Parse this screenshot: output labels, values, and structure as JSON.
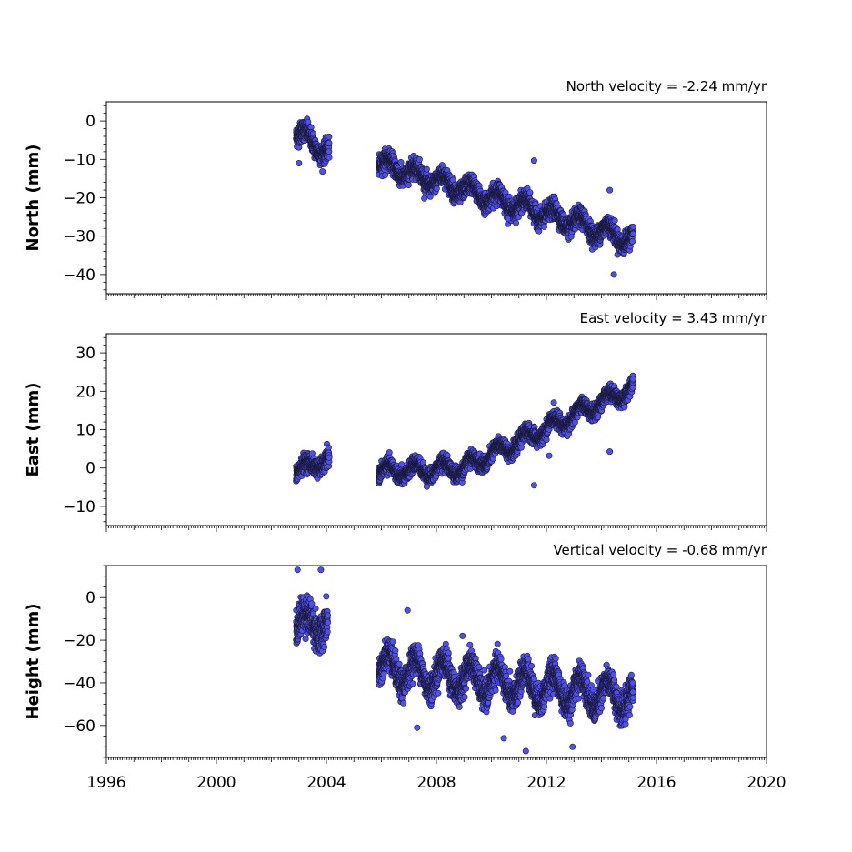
{
  "chart_data": [
    {
      "type": "scatter",
      "title": "North velocity = -2.24 mm/yr",
      "ylabel": "North (mm)",
      "xlim": [
        1996,
        2020
      ],
      "ylim": [
        -45,
        5
      ],
      "yticks": [
        0,
        -10,
        -20,
        -30,
        -40
      ],
      "ytick_labels": [
        "0",
        "−10",
        "−20",
        "−30",
        "−40"
      ],
      "show_x_labels": false,
      "segments": [
        {
          "x0": 2002.9,
          "x1": 2004.1,
          "y0": -3,
          "y1": -8,
          "amp": 2.0,
          "noise": 2.2
        },
        {
          "x0": 2005.9,
          "x1": 2015.15,
          "y0": -11,
          "y1": -31,
          "amp": 2.0,
          "noise": 2.0
        }
      ],
      "outliers": [
        {
          "x": 2003.0,
          "y": -11
        },
        {
          "x": 2011.55,
          "y": -10.3
        },
        {
          "x": 2014.3,
          "y": -18
        },
        {
          "x": 2010.6,
          "y": -25.5
        },
        {
          "x": 2014.45,
          "y": -40
        }
      ]
    },
    {
      "type": "scatter",
      "title": "East velocity = 3.43 mm/yr",
      "ylabel": "East (mm)",
      "xlim": [
        1996,
        2020
      ],
      "ylim": [
        -15,
        35
      ],
      "yticks": [
        30,
        20,
        10,
        0,
        -10
      ],
      "ytick_labels": [
        "30",
        "20",
        "10",
        "0",
        "−10"
      ],
      "show_x_labels": false,
      "segments": [
        {
          "x0": 2002.9,
          "x1": 2004.1,
          "y0": -1,
          "y1": 2.5,
          "amp": 1.5,
          "noise": 1.8
        },
        {
          "x0": 2005.9,
          "x1": 2009.0,
          "y0": -1,
          "y1": 0,
          "amp": 1.8,
          "noise": 1.6
        },
        {
          "x0": 2009.0,
          "x1": 2015.15,
          "y0": 0,
          "y1": 21,
          "amp": 1.8,
          "noise": 1.6
        }
      ],
      "outliers": [
        {
          "x": 2011.55,
          "y": -4.5
        },
        {
          "x": 2014.3,
          "y": 4.3
        },
        {
          "x": 2012.1,
          "y": 3.2
        }
      ]
    },
    {
      "type": "scatter",
      "title": "Vertical velocity = -0.68 mm/yr",
      "ylabel": "Height (mm)",
      "xlim": [
        1996,
        2020
      ],
      "ylim": [
        -75,
        15
      ],
      "yticks": [
        0,
        -20,
        -40,
        -60
      ],
      "ytick_labels": [
        "0",
        "−20",
        "−40",
        "−60"
      ],
      "show_x_labels": true,
      "xticks": [
        1996,
        2000,
        2004,
        2008,
        2012,
        2016,
        2020
      ],
      "xtick_labels": [
        "1996",
        "2000",
        "2004",
        "2008",
        "2012",
        "2016",
        "2020"
      ],
      "segments": [
        {
          "x0": 2002.9,
          "x1": 2004.05,
          "y0": -12,
          "y1": -12,
          "amp": 5.0,
          "noise": 7.0
        },
        {
          "x0": 2005.9,
          "x1": 2015.15,
          "y0": -33,
          "y1": -47,
          "amp": 7.0,
          "noise": 5.5
        }
      ],
      "outliers": [
        {
          "x": 2002.95,
          "y": 13
        },
        {
          "x": 2003.8,
          "y": 13
        },
        {
          "x": 2006.95,
          "y": -6
        },
        {
          "x": 2008.95,
          "y": -18
        },
        {
          "x": 2007.3,
          "y": -61
        },
        {
          "x": 2011.25,
          "y": -72
        },
        {
          "x": 2012.95,
          "y": -70
        },
        {
          "x": 2010.45,
          "y": -66
        }
      ]
    }
  ],
  "colors": {
    "marker_fill": "#5050f0",
    "marker_edge": "#1a1a3a",
    "axis": "#000000"
  }
}
